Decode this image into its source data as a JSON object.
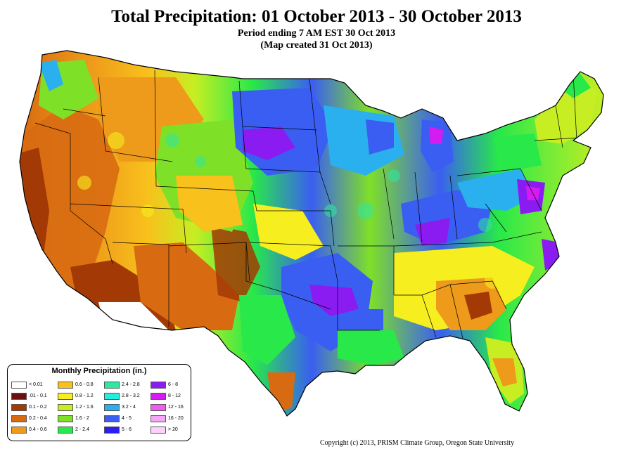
{
  "header": {
    "title": "Total Precipitation: 01 October 2013 - 30 October 2013",
    "period": "Period ending 7 AM EST 30 Oct 2013",
    "created": "(Map created 31 Oct 2013)"
  },
  "legend": {
    "title": "Monthly Precipitation (in.)",
    "items": [
      {
        "label": "< 0.01",
        "color": "#ffffff"
      },
      {
        "label": ".01 - 0.1",
        "color": "#6b0f0f"
      },
      {
        "label": "0.1 - 0.2",
        "color": "#a33a05"
      },
      {
        "label": "0.2 - 0.4",
        "color": "#d86b12"
      },
      {
        "label": "0.4 - 0.6",
        "color": "#ee9a1a"
      },
      {
        "label": "0.6 - 0.8",
        "color": "#f8c11c"
      },
      {
        "label": "0.8 - 1.2",
        "color": "#f6ee1e"
      },
      {
        "label": "1.2 - 1.6",
        "color": "#c6ee22"
      },
      {
        "label": "1.6 - 2",
        "color": "#7fe028"
      },
      {
        "label": "2 - 2.4",
        "color": "#28e84a"
      },
      {
        "label": "2.4 - 2.8",
        "color": "#2ee8a0"
      },
      {
        "label": "2.8 - 3.2",
        "color": "#22eedd"
      },
      {
        "label": "3.2 - 4",
        "color": "#2ab0ee"
      },
      {
        "label": "4 - 5",
        "color": "#3a5ef2"
      },
      {
        "label": "5 - 6",
        "color": "#2a1ef0"
      },
      {
        "label": "6 - 8",
        "color": "#8a1cf2"
      },
      {
        "label": "8 - 12",
        "color": "#d41cf0"
      },
      {
        "label": "12 - 16",
        "color": "#f05ef0"
      },
      {
        "label": "16 - 20",
        "color": "#f6a6f6"
      },
      {
        "label": "> 20",
        "color": "#fcd2fc"
      }
    ]
  },
  "footer": {
    "copyright": "Copyright (c) 2013, PRISM Climate Group, Oregon State University"
  }
}
